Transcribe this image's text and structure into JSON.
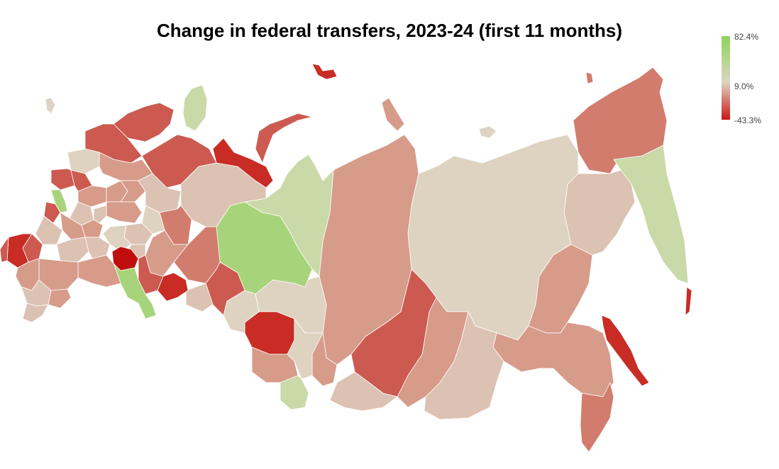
{
  "title": "Change in federal transfers, 2023-24 (first 11 months)",
  "legend": {
    "max_label": "82.4%",
    "mid_label": "9.0%",
    "min_label": "-43.3%",
    "colors": {
      "max": "#8fd35a",
      "mid": "#dcd5c3",
      "min": "#c91818"
    }
  },
  "palette": {
    "green": "#a7d47a",
    "green_pale": "#c9d9a8",
    "beige": "#ddd3c0",
    "beige_pink": "#dcc2b2",
    "pink": "#d79b8a",
    "salmon": "#d27c6e",
    "red": "#cc5a50",
    "deep_red": "#c82c24",
    "darkest": "#c00e0e"
  }
}
